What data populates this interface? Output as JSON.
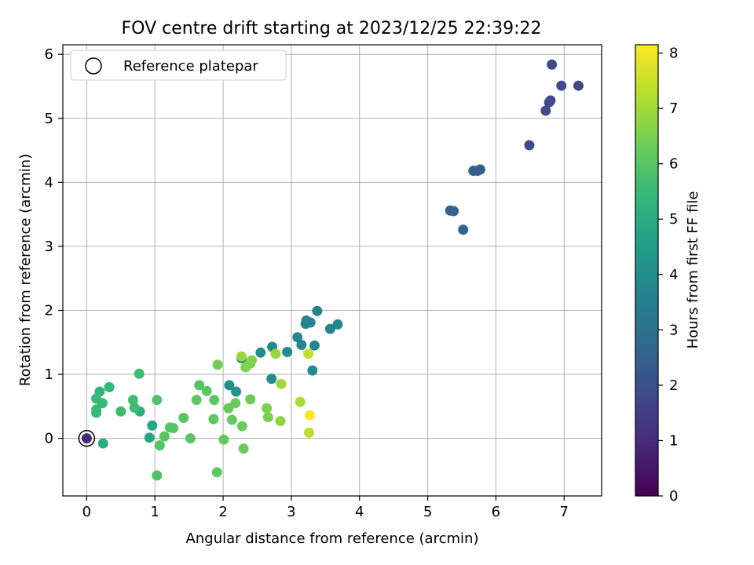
{
  "chart_data": {
    "type": "scatter",
    "title": "FOV centre drift starting at 2023/12/25 22:39:22",
    "xlabel": "Angular distance from reference (arcmin)",
    "ylabel": "Rotation from reference (arcmin)",
    "xlim": [
      -0.35,
      7.55
    ],
    "ylim": [
      -0.9,
      6.15
    ],
    "xticks": [
      0,
      1,
      2,
      3,
      4,
      5,
      6,
      7
    ],
    "yticks": [
      0,
      1,
      2,
      3,
      4,
      5,
      6
    ],
    "grid": true,
    "legend": {
      "position": "top-left",
      "entries": [
        "Reference platepar"
      ]
    },
    "reference_point": {
      "x": 0,
      "y": 0,
      "label": "Reference platepar"
    },
    "colorbar": {
      "label": "Hours from first FF file",
      "colormap": "viridis",
      "range": [
        0,
        8.15
      ],
      "ticks": [
        0,
        1,
        2,
        3,
        4,
        5,
        6,
        7,
        8
      ]
    },
    "points": [
      {
        "x": 0,
        "y": 0,
        "hours": 0.9
      },
      {
        "x": 6.82,
        "y": 5.84,
        "hours": 1.8
      },
      {
        "x": 6.96,
        "y": 5.51,
        "hours": 1.8
      },
      {
        "x": 7.21,
        "y": 5.51,
        "hours": 1.8
      },
      {
        "x": 6.8,
        "y": 5.28,
        "hours": 1.8
      },
      {
        "x": 6.78,
        "y": 5.25,
        "hours": 1.8
      },
      {
        "x": 6.73,
        "y": 5.12,
        "hours": 1.8
      },
      {
        "x": 6.49,
        "y": 4.58,
        "hours": 1.9
      },
      {
        "x": 5.77,
        "y": 4.2,
        "hours": 2.4
      },
      {
        "x": 5.73,
        "y": 4.18,
        "hours": 2.4
      },
      {
        "x": 5.67,
        "y": 4.18,
        "hours": 2.4
      },
      {
        "x": 5.33,
        "y": 3.56,
        "hours": 2.5
      },
      {
        "x": 5.38,
        "y": 3.55,
        "hours": 2.5
      },
      {
        "x": 5.52,
        "y": 3.26,
        "hours": 2.6
      },
      {
        "x": 3.38,
        "y": 1.99,
        "hours": 3.7
      },
      {
        "x": 3.22,
        "y": 1.84,
        "hours": 3.7
      },
      {
        "x": 3.28,
        "y": 1.81,
        "hours": 3.7
      },
      {
        "x": 3.21,
        "y": 1.79,
        "hours": 3.7
      },
      {
        "x": 3.68,
        "y": 1.78,
        "hours": 3.7
      },
      {
        "x": 3.57,
        "y": 1.71,
        "hours": 3.7
      },
      {
        "x": 3.09,
        "y": 1.58,
        "hours": 3.8
      },
      {
        "x": 3.15,
        "y": 1.46,
        "hours": 3.8
      },
      {
        "x": 3.34,
        "y": 1.45,
        "hours": 3.8
      },
      {
        "x": 2.72,
        "y": 1.43,
        "hours": 3.9
      },
      {
        "x": 2.94,
        "y": 1.35,
        "hours": 3.9
      },
      {
        "x": 2.55,
        "y": 1.34,
        "hours": 3.9
      },
      {
        "x": 2.27,
        "y": 1.25,
        "hours": 3.9
      },
      {
        "x": 3.31,
        "y": 1.06,
        "hours": 3.9
      },
      {
        "x": 2.71,
        "y": 0.93,
        "hours": 4.0
      },
      {
        "x": 2.09,
        "y": 0.83,
        "hours": 4.1
      },
      {
        "x": 2.19,
        "y": 0.73,
        "hours": 4.2
      },
      {
        "x": 0.96,
        "y": 0.2,
        "hours": 4.8
      },
      {
        "x": 0.92,
        "y": 0.01,
        "hours": 4.8
      },
      {
        "x": 0.24,
        "y": -0.08,
        "hours": 5.1
      },
      {
        "x": 0.78,
        "y": 0.42,
        "hours": 5.2
      },
      {
        "x": 0.19,
        "y": 0.73,
        "hours": 5.3
      },
      {
        "x": 0.33,
        "y": 0.8,
        "hours": 5.4
      },
      {
        "x": 0.14,
        "y": 0.62,
        "hours": 5.5
      },
      {
        "x": 0.23,
        "y": 0.55,
        "hours": 5.5
      },
      {
        "x": 0.14,
        "y": 0.45,
        "hours": 5.5
      },
      {
        "x": 0.14,
        "y": 0.4,
        "hours": 5.5
      },
      {
        "x": 0.5,
        "y": 0.42,
        "hours": 5.6
      },
      {
        "x": 0.68,
        "y": 0.6,
        "hours": 5.6
      },
      {
        "x": 0.7,
        "y": 0.48,
        "hours": 5.6
      },
      {
        "x": 0.77,
        "y": 1.01,
        "hours": 5.6
      },
      {
        "x": 1.03,
        "y": 0.6,
        "hours": 5.9
      },
      {
        "x": 1.03,
        "y": -0.58,
        "hours": 5.9
      },
      {
        "x": 1.07,
        "y": -0.11,
        "hours": 6.0
      },
      {
        "x": 1.14,
        "y": 0.03,
        "hours": 6.0
      },
      {
        "x": 1.22,
        "y": 0.17,
        "hours": 6.0
      },
      {
        "x": 1.27,
        "y": 0.16,
        "hours": 6.0
      },
      {
        "x": 1.42,
        "y": 0.32,
        "hours": 6.0
      },
      {
        "x": 1.52,
        "y": 0.0,
        "hours": 6.0
      },
      {
        "x": 1.65,
        "y": 0.83,
        "hours": 6.0
      },
      {
        "x": 1.61,
        "y": 0.6,
        "hours": 6.1
      },
      {
        "x": 1.76,
        "y": 0.74,
        "hours": 6.1
      },
      {
        "x": 1.87,
        "y": 0.6,
        "hours": 6.1
      },
      {
        "x": 1.86,
        "y": 0.3,
        "hours": 6.1
      },
      {
        "x": 1.91,
        "y": -0.53,
        "hours": 6.1
      },
      {
        "x": 2.01,
        "y": -0.02,
        "hours": 6.2
      },
      {
        "x": 2.13,
        "y": 0.29,
        "hours": 6.2
      },
      {
        "x": 2.08,
        "y": 0.47,
        "hours": 6.2
      },
      {
        "x": 2.18,
        "y": 0.55,
        "hours": 6.3
      },
      {
        "x": 2.28,
        "y": 0.19,
        "hours": 6.3
      },
      {
        "x": 2.3,
        "y": -0.16,
        "hours": 6.3
      },
      {
        "x": 2.4,
        "y": 0.61,
        "hours": 6.3
      },
      {
        "x": 1.92,
        "y": 1.15,
        "hours": 6.4
      },
      {
        "x": 2.64,
        "y": 0.47,
        "hours": 6.5
      },
      {
        "x": 2.66,
        "y": 0.33,
        "hours": 6.5
      },
      {
        "x": 2.33,
        "y": 1.11,
        "hours": 6.6
      },
      {
        "x": 2.4,
        "y": 1.17,
        "hours": 6.6
      },
      {
        "x": 2.42,
        "y": 1.22,
        "hours": 6.6
      },
      {
        "x": 2.84,
        "y": 0.27,
        "hours": 6.8
      },
      {
        "x": 2.27,
        "y": 1.28,
        "hours": 6.9
      },
      {
        "x": 2.77,
        "y": 1.32,
        "hours": 6.9
      },
      {
        "x": 2.85,
        "y": 0.85,
        "hours": 7.0
      },
      {
        "x": 3.13,
        "y": 0.57,
        "hours": 7.1
      },
      {
        "x": 3.26,
        "y": 0.09,
        "hours": 7.3
      },
      {
        "x": 3.25,
        "y": 1.32,
        "hours": 7.4
      },
      {
        "x": 3.27,
        "y": 0.36,
        "hours": 8.1
      }
    ]
  }
}
